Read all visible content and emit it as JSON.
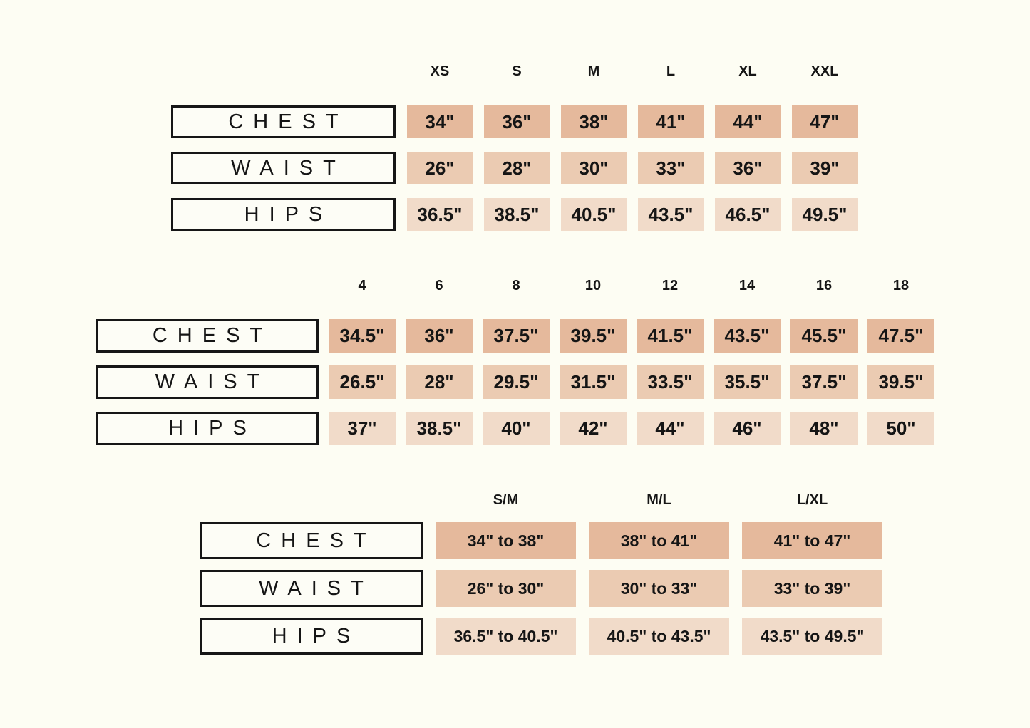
{
  "page": {
    "background_color": "#fdfdf3",
    "text_color": "#151515"
  },
  "colors": {
    "chest_cell": "#e5b99c",
    "waist_cell": "#ebcbb2",
    "hips_cell": "#f1dbc9",
    "label_box_border": "#161616",
    "label_box_background": "#fdfdf6"
  },
  "tables": [
    {
      "name": "letter-sizes",
      "columns": [
        "XS",
        "S",
        "M",
        "L",
        "XL",
        "XXL"
      ],
      "rows": [
        {
          "label": "CHEST",
          "values": [
            "34\"",
            "36\"",
            "38\"",
            "41\"",
            "44\"",
            "47\""
          ]
        },
        {
          "label": "WAIST",
          "values": [
            "26\"",
            "28\"",
            "30\"",
            "33\"",
            "36\"",
            "39\""
          ]
        },
        {
          "label": "HIPS",
          "values": [
            "36.5\"",
            "38.5\"",
            "40.5\"",
            "43.5\"",
            "46.5\"",
            "49.5\""
          ]
        }
      ]
    },
    {
      "name": "numeric-sizes",
      "columns": [
        "4",
        "6",
        "8",
        "10",
        "12",
        "14",
        "16",
        "18"
      ],
      "rows": [
        {
          "label": "CHEST",
          "values": [
            "34.5\"",
            "36\"",
            "37.5\"",
            "39.5\"",
            "41.5\"",
            "43.5\"",
            "45.5\"",
            "47.5\""
          ]
        },
        {
          "label": "WAIST",
          "values": [
            "26.5\"",
            "28\"",
            "29.5\"",
            "31.5\"",
            "33.5\"",
            "35.5\"",
            "37.5\"",
            "39.5\""
          ]
        },
        {
          "label": "HIPS",
          "values": [
            "37\"",
            "38.5\"",
            "40\"",
            "42\"",
            "44\"",
            "46\"",
            "48\"",
            "50\""
          ]
        }
      ]
    },
    {
      "name": "combo-sizes",
      "columns": [
        "S/M",
        "M/L",
        "L/XL"
      ],
      "rows": [
        {
          "label": "CHEST",
          "values": [
            "34\" to 38\"",
            "38\" to 41\"",
            "41\" to 47\""
          ]
        },
        {
          "label": "WAIST",
          "values": [
            "26\" to 30\"",
            "30\" to 33\"",
            "33\" to 39\""
          ]
        },
        {
          "label": "HIPS",
          "values": [
            "36.5\" to 40.5\"",
            "40.5\" to 43.5\"",
            "43.5\" to 49.5\""
          ]
        }
      ]
    }
  ]
}
